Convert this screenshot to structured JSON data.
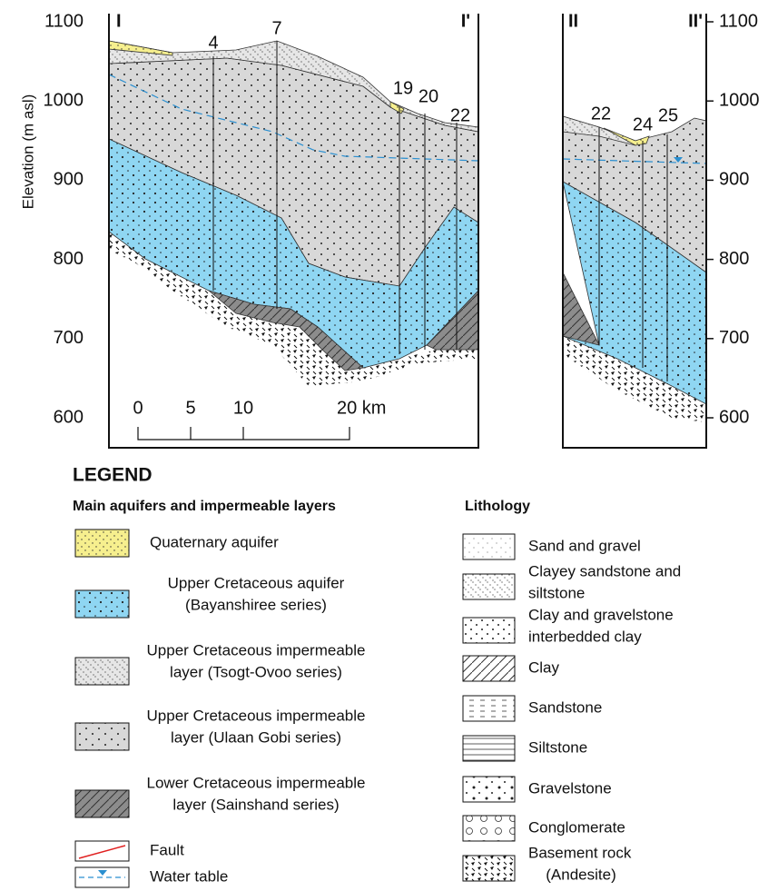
{
  "section": {
    "elevation_label": "Elevation (m asl)",
    "elevation_ticks": [
      1100,
      1000,
      900,
      800,
      700,
      600
    ],
    "sections": [
      "I",
      "I'",
      "II",
      "II'"
    ],
    "wells_I": [
      "4",
      "7",
      "19",
      "20",
      "22"
    ],
    "wells_II": [
      "22",
      "24",
      "25"
    ],
    "scale": [
      "0",
      "5",
      "10",
      "20 km"
    ]
  },
  "legend": {
    "title": "LEGEND",
    "aquifers_heading": "Main aquifers and impermeable layers",
    "aquifers": [
      {
        "lines": [
          "Quaternary aquifer"
        ]
      },
      {
        "lines": [
          "Upper Cretaceous aquifer",
          "(Bayanshiree series)"
        ]
      },
      {
        "lines": [
          "Upper Cretaceous impermeable",
          "layer (Tsogt-Ovoo series)"
        ]
      },
      {
        "lines": [
          "Upper Cretaceous impermeable",
          "layer (Ulaan Gobi series)"
        ]
      },
      {
        "lines": [
          "Lower Cretaceous impermeable",
          "layer (Sainshand series)"
        ]
      },
      {
        "lines": [
          "Fault"
        ]
      },
      {
        "lines": [
          "Water table"
        ]
      }
    ],
    "lithology_heading": "Lithology",
    "lithology": [
      {
        "lines": [
          "Sand and gravel"
        ]
      },
      {
        "lines": [
          "Clayey sandstone and",
          "siltstone"
        ]
      },
      {
        "lines": [
          "Clay and gravelstone",
          "interbedded clay"
        ]
      },
      {
        "lines": [
          "Clay"
        ]
      },
      {
        "lines": [
          "Sandstone"
        ]
      },
      {
        "lines": [
          "Siltstone"
        ]
      },
      {
        "lines": [
          "Gravelstone"
        ]
      },
      {
        "lines": [
          "Conglomerate"
        ]
      },
      {
        "lines": [
          "Basement rock",
          "(Andesite)"
        ]
      }
    ]
  }
}
